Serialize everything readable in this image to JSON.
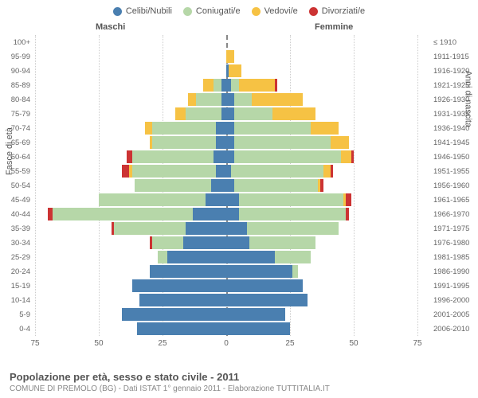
{
  "legend": [
    {
      "label": "Celibi/Nubili",
      "color": "#4a7fb0"
    },
    {
      "label": "Coniugati/e",
      "color": "#b6d7a8"
    },
    {
      "label": "Vedovi/e",
      "color": "#f6c244"
    },
    {
      "label": "Divorziati/e",
      "color": "#cc3333"
    }
  ],
  "gender": {
    "m": "Maschi",
    "f": "Femmine"
  },
  "axis": {
    "left_title": "Fasce di età",
    "right_title": "Anni di nascita"
  },
  "xaxis": {
    "max": 75,
    "ticks": [
      75,
      50,
      25,
      0,
      25,
      50,
      75
    ]
  },
  "colors": {
    "celibi": "#4a7fb0",
    "coniugati": "#b6d7a8",
    "vedovi": "#f6c244",
    "divorziati": "#cc3333",
    "grid": "#cccccc",
    "center": "#888888",
    "bg": "#ffffff"
  },
  "footer": {
    "title": "Popolazione per età, sesso e stato civile - 2011",
    "sub": "COMUNE DI PREMOLO (BG) - Dati ISTAT 1° gennaio 2011 - Elaborazione TUTTITALIA.IT"
  },
  "rows": [
    {
      "age": "100+",
      "birth": "≤ 1910",
      "m": {
        "c": 0,
        "co": 0,
        "v": 0,
        "d": 0
      },
      "f": {
        "c": 0,
        "co": 0,
        "v": 0,
        "d": 0
      }
    },
    {
      "age": "95-99",
      "birth": "1911-1915",
      "m": {
        "c": 0,
        "co": 0,
        "v": 0,
        "d": 0
      },
      "f": {
        "c": 0,
        "co": 0,
        "v": 3,
        "d": 0
      }
    },
    {
      "age": "90-94",
      "birth": "1916-1920",
      "m": {
        "c": 0,
        "co": 0,
        "v": 0,
        "d": 0
      },
      "f": {
        "c": 1,
        "co": 0,
        "v": 5,
        "d": 0
      }
    },
    {
      "age": "85-89",
      "birth": "1921-1925",
      "m": {
        "c": 2,
        "co": 3,
        "v": 4,
        "d": 0
      },
      "f": {
        "c": 2,
        "co": 3,
        "v": 14,
        "d": 1
      }
    },
    {
      "age": "80-84",
      "birth": "1926-1930",
      "m": {
        "c": 2,
        "co": 10,
        "v": 3,
        "d": 0
      },
      "f": {
        "c": 3,
        "co": 7,
        "v": 20,
        "d": 0
      }
    },
    {
      "age": "75-79",
      "birth": "1931-1935",
      "m": {
        "c": 2,
        "co": 14,
        "v": 4,
        "d": 0
      },
      "f": {
        "c": 3,
        "co": 15,
        "v": 17,
        "d": 0
      }
    },
    {
      "age": "70-74",
      "birth": "1936-1940",
      "m": {
        "c": 4,
        "co": 25,
        "v": 3,
        "d": 0
      },
      "f": {
        "c": 3,
        "co": 30,
        "v": 11,
        "d": 0
      }
    },
    {
      "age": "65-69",
      "birth": "1941-1945",
      "m": {
        "c": 4,
        "co": 25,
        "v": 1,
        "d": 0
      },
      "f": {
        "c": 3,
        "co": 38,
        "v": 7,
        "d": 0
      }
    },
    {
      "age": "60-64",
      "birth": "1946-1950",
      "m": {
        "c": 5,
        "co": 32,
        "v": 0,
        "d": 2
      },
      "f": {
        "c": 3,
        "co": 42,
        "v": 4,
        "d": 1
      }
    },
    {
      "age": "55-59",
      "birth": "1951-1955",
      "m": {
        "c": 4,
        "co": 33,
        "v": 1,
        "d": 3
      },
      "f": {
        "c": 2,
        "co": 36,
        "v": 3,
        "d": 1
      }
    },
    {
      "age": "50-54",
      "birth": "1956-1960",
      "m": {
        "c": 6,
        "co": 30,
        "v": 0,
        "d": 0
      },
      "f": {
        "c": 3,
        "co": 33,
        "v": 1,
        "d": 1
      }
    },
    {
      "age": "45-49",
      "birth": "1961-1965",
      "m": {
        "c": 8,
        "co": 42,
        "v": 0,
        "d": 0
      },
      "f": {
        "c": 5,
        "co": 41,
        "v": 1,
        "d": 2
      }
    },
    {
      "age": "40-44",
      "birth": "1966-1970",
      "m": {
        "c": 13,
        "co": 55,
        "v": 0,
        "d": 2
      },
      "f": {
        "c": 5,
        "co": 42,
        "v": 0,
        "d": 1
      }
    },
    {
      "age": "35-39",
      "birth": "1971-1975",
      "m": {
        "c": 16,
        "co": 28,
        "v": 0,
        "d": 1
      },
      "f": {
        "c": 8,
        "co": 36,
        "v": 0,
        "d": 0
      }
    },
    {
      "age": "30-34",
      "birth": "1976-1980",
      "m": {
        "c": 17,
        "co": 12,
        "v": 0,
        "d": 1
      },
      "f": {
        "c": 9,
        "co": 26,
        "v": 0,
        "d": 0
      }
    },
    {
      "age": "25-29",
      "birth": "1981-1985",
      "m": {
        "c": 23,
        "co": 4,
        "v": 0,
        "d": 0
      },
      "f": {
        "c": 19,
        "co": 14,
        "v": 0,
        "d": 0
      }
    },
    {
      "age": "20-24",
      "birth": "1986-1990",
      "m": {
        "c": 30,
        "co": 0,
        "v": 0,
        "d": 0
      },
      "f": {
        "c": 26,
        "co": 2,
        "v": 0,
        "d": 0
      }
    },
    {
      "age": "15-19",
      "birth": "1991-1995",
      "m": {
        "c": 37,
        "co": 0,
        "v": 0,
        "d": 0
      },
      "f": {
        "c": 30,
        "co": 0,
        "v": 0,
        "d": 0
      }
    },
    {
      "age": "10-14",
      "birth": "1996-2000",
      "m": {
        "c": 34,
        "co": 0,
        "v": 0,
        "d": 0
      },
      "f": {
        "c": 32,
        "co": 0,
        "v": 0,
        "d": 0
      }
    },
    {
      "age": "5-9",
      "birth": "2001-2005",
      "m": {
        "c": 41,
        "co": 0,
        "v": 0,
        "d": 0
      },
      "f": {
        "c": 23,
        "co": 0,
        "v": 0,
        "d": 0
      }
    },
    {
      "age": "0-4",
      "birth": "2006-2010",
      "m": {
        "c": 35,
        "co": 0,
        "v": 0,
        "d": 0
      },
      "f": {
        "c": 25,
        "co": 0,
        "v": 0,
        "d": 0
      }
    }
  ]
}
